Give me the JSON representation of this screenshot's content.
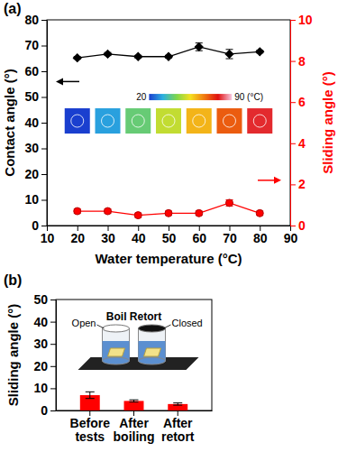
{
  "chart_data": [
    {
      "type": "line",
      "panel_label": "(a)",
      "x": [
        20,
        30,
        40,
        50,
        60,
        70,
        80
      ],
      "xlim": [
        10,
        90
      ],
      "xticks": [
        10,
        20,
        30,
        40,
        50,
        60,
        70,
        80,
        90
      ],
      "xlabel": "Water temperature (°C)",
      "ylabel": "Contact angle (°)",
      "y2label": "Sliding angle (°)",
      "ylim": [
        0,
        80
      ],
      "yticks": [
        0,
        10,
        20,
        30,
        40,
        50,
        60,
        70,
        80
      ],
      "y2lim": [
        0,
        10
      ],
      "y2ticks": [
        0,
        2,
        4,
        6,
        8,
        10
      ],
      "series": [
        {
          "color": "#000000",
          "marker": "diamond",
          "values": [
            65.2,
            66.7,
            65.7,
            65.7,
            69.5,
            66.7,
            67.6
          ],
          "error": [
            0.5,
            0.6,
            0.5,
            0.5,
            1.5,
            1.8,
            0.5
          ]
        },
        {
          "color": "#ff0000",
          "marker": "circle",
          "axis": "y2",
          "values": [
            0.7,
            0.7,
            0.5,
            0.6,
            0.6,
            1.1,
            0.6
          ],
          "error": [
            0.1,
            0.1,
            0.1,
            0.1,
            0.1,
            0.15,
            0.1
          ]
        }
      ],
      "colorbar": {
        "range": [
          20,
          90
        ],
        "ticks": [
          20,
          {
            "value": 90,
            "label": "90 (°C)"
          }
        ]
      }
    },
    {
      "type": "bar",
      "panel_label": "(b)",
      "categories": [
        "Before tests",
        "After boiling",
        "After retort"
      ],
      "values": [
        6.9,
        4.3,
        2.9
      ],
      "error": [
        1.5,
        0.5,
        0.5
      ],
      "color": "#ff0000",
      "ylim": [
        0,
        50
      ],
      "yticks": [
        0,
        10,
        20,
        30,
        40,
        50
      ],
      "ylabel": "Sliding angle (°)",
      "annotations": [
        "Boil Retort",
        "Open",
        "Closed"
      ]
    }
  ]
}
